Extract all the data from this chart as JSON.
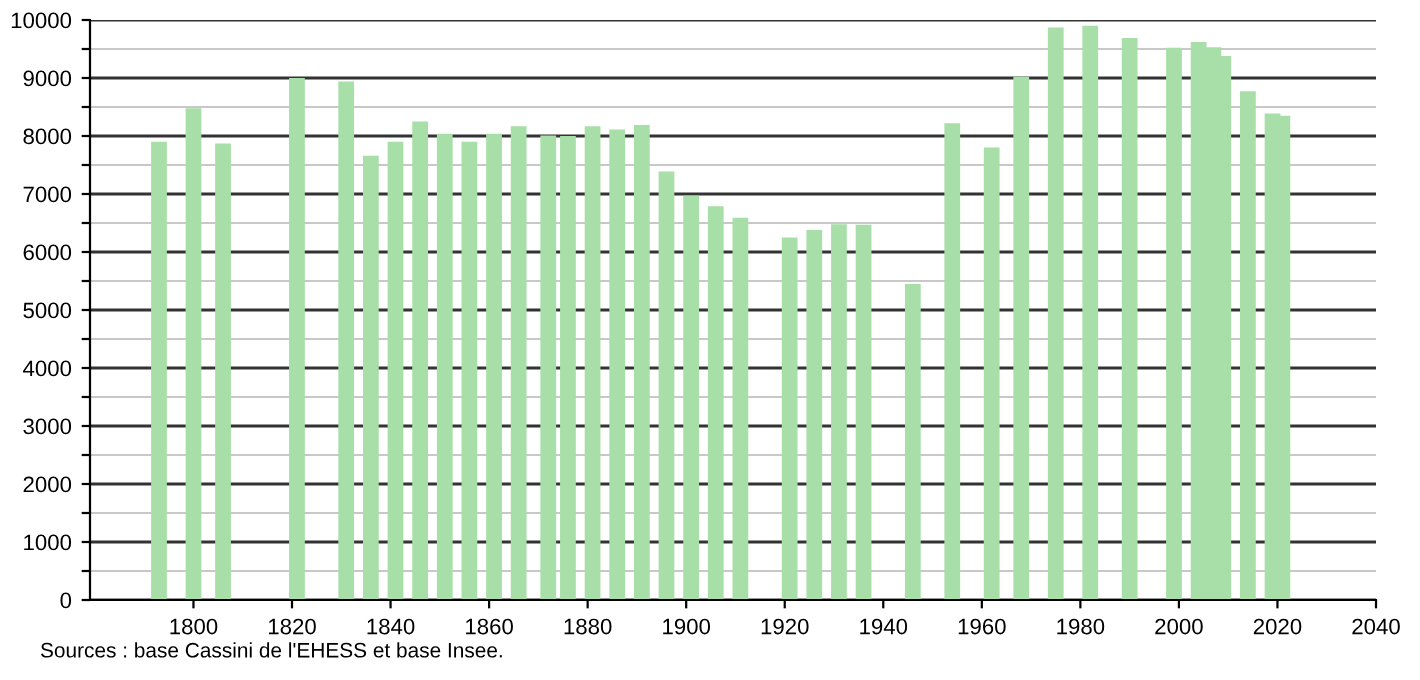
{
  "chart_data": {
    "type": "bar",
    "x": [
      1793,
      1800,
      1806,
      1821,
      1831,
      1836,
      1841,
      1846,
      1851,
      1856,
      1861,
      1866,
      1872,
      1876,
      1881,
      1886,
      1891,
      1896,
      1901,
      1906,
      1911,
      1921,
      1926,
      1931,
      1936,
      1946,
      1954,
      1962,
      1968,
      1975,
      1982,
      1990,
      1999,
      2004,
      2007,
      2009,
      2014,
      2019,
      2021
    ],
    "values": [
      7900,
      8480,
      7870,
      9000,
      8940,
      7660,
      7900,
      8250,
      8040,
      7900,
      8040,
      8170,
      8010,
      8000,
      8170,
      8110,
      8190,
      7390,
      6970,
      6790,
      6590,
      6250,
      6380,
      6480,
      6470,
      5450,
      8220,
      7800,
      9020,
      9870,
      9900,
      9690,
      9520,
      9620,
      9530,
      9380,
      8770,
      8390,
      8350
    ],
    "color": "#a8dfa8",
    "xlim": [
      1779,
      2040
    ],
    "xticks": [
      1800,
      1820,
      1840,
      1860,
      1880,
      1900,
      1920,
      1940,
      1960,
      1980,
      2000,
      2020,
      2040
    ],
    "ylim": [
      0,
      10000
    ],
    "yticks": [
      0,
      {
        "value": 500,
        "label": null
      },
      1000,
      {
        "value": 1500,
        "label": null
      },
      2000,
      {
        "value": 2500,
        "label": null
      },
      3000,
      {
        "value": 3500,
        "label": null
      },
      4000,
      {
        "value": 4500,
        "label": null
      },
      5000,
      {
        "value": 5500,
        "label": null
      },
      6000,
      {
        "value": 6500,
        "label": null
      },
      7000,
      {
        "value": 7500,
        "label": null
      },
      8000,
      {
        "value": 8500,
        "label": null
      },
      9000,
      {
        "value": 9500,
        "label": null
      },
      10000
    ],
    "grid": "y",
    "annotations": [
      "Sources : base Cassini de l'EHESS et base Insee."
    ]
  }
}
